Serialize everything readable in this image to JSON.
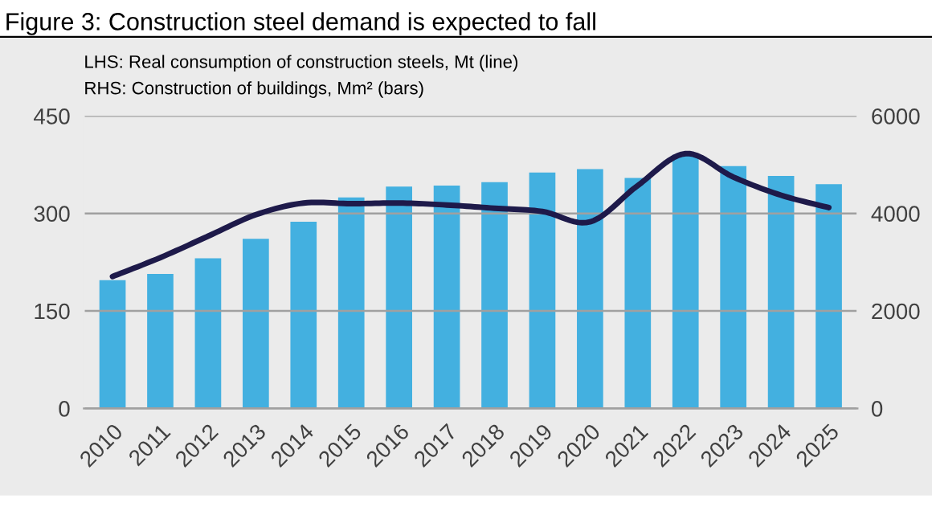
{
  "chart_data": {
    "type": "bar",
    "title": "Figure 3: Construction steel demand is expected to fall",
    "annotations": [
      "LHS: Real consumption of construction steels, Mt (line)",
      "RHS: Construction of buildings, Mm² (bars)"
    ],
    "categories": [
      "2010",
      "2011",
      "2012",
      "2013",
      "2014",
      "2015",
      "2016",
      "2017",
      "2018",
      "2019",
      "2020",
      "2021",
      "2022",
      "2023",
      "2024",
      "2025"
    ],
    "series": [
      {
        "axis": "y2",
        "color": "#43b0e0",
        "values": [
          2630,
          2760,
          3080,
          3480,
          3830,
          4330,
          4550,
          4570,
          4640,
          4840,
          4910,
          4730,
          5200,
          4970,
          4770,
          4600
        ]
      },
      {
        "type": "line",
        "color": "#1e1a4a",
        "values": [
          203,
          232,
          265,
          298,
          316,
          315,
          316,
          313,
          308,
          303,
          287,
          343,
          392,
          356,
          328,
          309
        ]
      }
    ],
    "ylim": [
      0,
      450
    ],
    "yticks": [
      0,
      150,
      300,
      450
    ],
    "y2lim": [
      0,
      6000
    ],
    "y2ticks": [
      0,
      2000,
      4000,
      6000
    ],
    "grid": "y",
    "marker": "none",
    "line_style": "solid"
  }
}
